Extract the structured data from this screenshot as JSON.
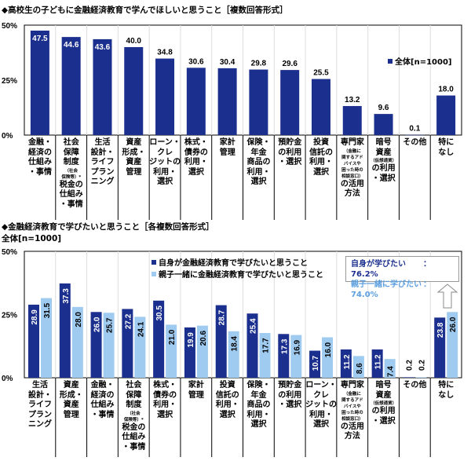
{
  "colors": {
    "dark": "#1b2f8e",
    "light": "#9fcbf0"
  },
  "chart_data": [
    {
      "type": "bar",
      "title": "◆高校生の子どもに金融経済教育で学んでほしいと思うこと［複数回答形式］",
      "legend": "全体[n=1000]",
      "ylim": [
        0,
        50
      ],
      "yticks": [
        "0%",
        "25%",
        "50%"
      ],
      "categories": [
        [
          {
            "t": "金融・"
          },
          {
            "t": "経済の"
          },
          {
            "t": "仕組み"
          },
          {
            "t": "・事情"
          }
        ],
        [
          {
            "t": "社会"
          },
          {
            "t": "保障"
          },
          {
            "t": "制度"
          },
          {
            "t": "（社会",
            "s": 1
          },
          {
            "t": "保険等）*",
            "s": 1
          },
          {
            "t": "税金の"
          },
          {
            "t": "仕組み"
          },
          {
            "t": "・事情"
          }
        ],
        [
          {
            "t": "生活"
          },
          {
            "t": "設計・"
          },
          {
            "t": "ライフ"
          },
          {
            "t": "プラン"
          },
          {
            "t": "ニング"
          }
        ],
        [
          {
            "t": "資産"
          },
          {
            "t": "形成・"
          },
          {
            "t": "資産"
          },
          {
            "t": "管理"
          }
        ],
        [
          {
            "t": "ローン・"
          },
          {
            "t": "クレ"
          },
          {
            "t": "ジットの"
          },
          {
            "t": "利用・"
          },
          {
            "t": "選択"
          }
        ],
        [
          {
            "t": "株式・"
          },
          {
            "t": "債券の"
          },
          {
            "t": "利用・"
          },
          {
            "t": "選択"
          }
        ],
        [
          {
            "t": "家計"
          },
          {
            "t": "管理"
          }
        ],
        [
          {
            "t": "保険・"
          },
          {
            "t": "年金"
          },
          {
            "t": "商品の"
          },
          {
            "t": "利用・"
          },
          {
            "t": "選択"
          }
        ],
        [
          {
            "t": "預貯金"
          },
          {
            "t": "の利用"
          },
          {
            "t": "・選択"
          }
        ],
        [
          {
            "t": "投資"
          },
          {
            "t": "信託の"
          },
          {
            "t": "利用・"
          },
          {
            "t": "選択"
          }
        ],
        [
          {
            "t": "専門家"
          },
          {
            "t": "（金融に",
            "s": 1
          },
          {
            "t": "関するアド",
            "s": 1
          },
          {
            "t": "バイスや",
            "s": 1
          },
          {
            "t": "困った時の",
            "s": 1
          },
          {
            "t": "相談窓口）",
            "s": 1
          },
          {
            "t": "の活用"
          },
          {
            "t": "方法"
          }
        ],
        [
          {
            "t": "暗号"
          },
          {
            "t": "資産"
          },
          {
            "t": "（仮想通貨）",
            "s": 1
          },
          {
            "t": "の利用"
          },
          {
            "t": "・選択"
          }
        ],
        [
          {
            "t": "その他"
          }
        ],
        [
          {
            "t": "特に"
          },
          {
            "t": "なし"
          }
        ]
      ],
      "series": [
        {
          "name": "全体[n=1000]",
          "values": [
            47.5,
            44.6,
            43.6,
            40.0,
            34.8,
            30.6,
            30.4,
            29.8,
            29.6,
            25.5,
            13.2,
            9.6,
            0.1,
            18.0
          ]
        }
      ]
    },
    {
      "type": "bar",
      "title": "◆金融経済教育で学びたいと思うこと［各複数回答形式］",
      "subtitle": "全体[n=1000]",
      "ylim": [
        0,
        50
      ],
      "yticks": [
        "0%",
        "25%",
        "50%"
      ],
      "categories": [
        [
          {
            "t": "生活"
          },
          {
            "t": "設計・"
          },
          {
            "t": "ライフ"
          },
          {
            "t": "プラン"
          },
          {
            "t": "ニング"
          }
        ],
        [
          {
            "t": "資産"
          },
          {
            "t": "形成・"
          },
          {
            "t": "資産"
          },
          {
            "t": "管理"
          }
        ],
        [
          {
            "t": "金融・"
          },
          {
            "t": "経済の"
          },
          {
            "t": "仕組み"
          },
          {
            "t": "・事情"
          }
        ],
        [
          {
            "t": "社会"
          },
          {
            "t": "保障"
          },
          {
            "t": "制度"
          },
          {
            "t": "（社会",
            "s": 1
          },
          {
            "t": "保険等）*",
            "s": 1
          },
          {
            "t": "税金の"
          },
          {
            "t": "仕組み"
          },
          {
            "t": "・事情"
          }
        ],
        [
          {
            "t": "株式・"
          },
          {
            "t": "債券の"
          },
          {
            "t": "利用・"
          },
          {
            "t": "選択"
          }
        ],
        [
          {
            "t": "家計"
          },
          {
            "t": "管理"
          }
        ],
        [
          {
            "t": "投資"
          },
          {
            "t": "信託の"
          },
          {
            "t": "利用・"
          },
          {
            "t": "選択"
          }
        ],
        [
          {
            "t": "保険・"
          },
          {
            "t": "年金"
          },
          {
            "t": "商品の"
          },
          {
            "t": "利用・"
          },
          {
            "t": "選択"
          }
        ],
        [
          {
            "t": "預貯金"
          },
          {
            "t": "の利用"
          },
          {
            "t": "・選択"
          }
        ],
        [
          {
            "t": "ローン・"
          },
          {
            "t": "クレ"
          },
          {
            "t": "ジットの"
          },
          {
            "t": "利用・"
          },
          {
            "t": "選択"
          }
        ],
        [
          {
            "t": "専門家"
          },
          {
            "t": "（金融に",
            "s": 1
          },
          {
            "t": "関するアド",
            "s": 1
          },
          {
            "t": "バイスや",
            "s": 1
          },
          {
            "t": "困った時の",
            "s": 1
          },
          {
            "t": "相談窓口）",
            "s": 1
          },
          {
            "t": "の活用"
          },
          {
            "t": "方法"
          }
        ],
        [
          {
            "t": "暗号"
          },
          {
            "t": "資産"
          },
          {
            "t": "（仮想通貨）",
            "s": 1
          },
          {
            "t": "の利用"
          },
          {
            "t": "・選択"
          }
        ],
        [
          {
            "t": "その他"
          }
        ],
        [
          {
            "t": "特に"
          },
          {
            "t": "なし"
          }
        ]
      ],
      "series": [
        {
          "name": "自身が金融経済教育で学びたいと思うこと",
          "values": [
            28.9,
            37.3,
            26.0,
            27.2,
            30.5,
            19.9,
            28.7,
            25.4,
            17.3,
            10.7,
            11.2,
            11.2,
            0.2,
            23.8
          ]
        },
        {
          "name": "親子一緒に金融経済教育で学びたいと思うこと",
          "values": [
            31.5,
            28.0,
            25.7,
            24.1,
            21.0,
            20.6,
            18.4,
            17.7,
            16.9,
            16.0,
            8.6,
            7.4,
            0.2,
            26.0
          ]
        }
      ],
      "annotation": {
        "line1_label": "自身が学びたい",
        "line1_value": "：76.2%",
        "line2_label": "親子一緒に学びたい",
        "line2_value": "：74.0%"
      }
    }
  ]
}
